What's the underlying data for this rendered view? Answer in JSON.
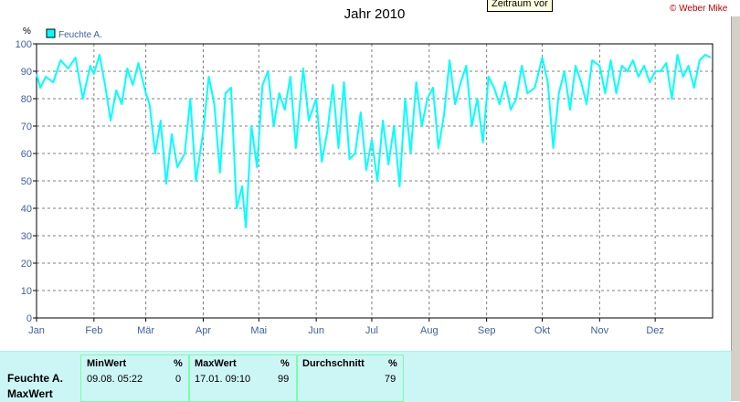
{
  "tooltip": "Zeitraum vor",
  "copyright": "© Weber Mike",
  "colors": {
    "series": "#00ffff",
    "axis": "#000000",
    "grid": "#808080",
    "panel": "#ccf6f5"
  },
  "chart_data": {
    "type": "line",
    "title": "Jahr 2010",
    "ylabel": "%",
    "ylim": [
      0,
      100
    ],
    "yticks": [
      0,
      10,
      20,
      30,
      40,
      50,
      60,
      70,
      80,
      90,
      100
    ],
    "xlim": [
      "2010-01-01",
      "2010-12-31"
    ],
    "xticks": [
      "Jan",
      "Feb",
      "Mär",
      "Apr",
      "Mai",
      "Jun",
      "Jul",
      "Aug",
      "Sep",
      "Okt",
      "Nov",
      "Dez"
    ],
    "grid": true,
    "legend": "top-left",
    "series": [
      {
        "name": "Feuchte A.",
        "color": "#00ffff",
        "x": [
          "2010-01-01",
          "2010-01-03",
          "2010-01-06",
          "2010-01-10",
          "2010-01-14",
          "2010-01-18",
          "2010-01-22",
          "2010-01-26",
          "2010-01-30",
          "2010-02-01",
          "2010-02-04",
          "2010-02-07",
          "2010-02-10",
          "2010-02-13",
          "2010-02-16",
          "2010-02-19",
          "2010-02-22",
          "2010-02-25",
          "2010-03-01",
          "2010-03-03",
          "2010-03-06",
          "2010-03-09",
          "2010-03-12",
          "2010-03-15",
          "2010-03-18",
          "2010-03-22",
          "2010-03-25",
          "2010-03-28",
          "2010-04-01",
          "2010-04-04",
          "2010-04-07",
          "2010-04-10",
          "2010-04-13",
          "2010-04-16",
          "2010-04-19",
          "2010-04-22",
          "2010-04-24",
          "2010-04-27",
          "2010-04-30",
          "2010-05-03",
          "2010-05-06",
          "2010-05-09",
          "2010-05-12",
          "2010-05-15",
          "2010-05-18",
          "2010-05-21",
          "2010-05-25",
          "2010-05-28",
          "2010-06-01",
          "2010-06-04",
          "2010-06-07",
          "2010-06-10",
          "2010-06-13",
          "2010-06-16",
          "2010-06-19",
          "2010-06-22",
          "2010-06-25",
          "2010-06-28",
          "2010-07-01",
          "2010-07-04",
          "2010-07-07",
          "2010-07-10",
          "2010-07-13",
          "2010-07-16",
          "2010-07-19",
          "2010-07-22",
          "2010-07-25",
          "2010-07-28",
          "2010-07-31",
          "2010-08-03",
          "2010-08-06",
          "2010-08-09",
          "2010-08-12",
          "2010-08-15",
          "2010-08-18",
          "2010-08-21",
          "2010-08-24",
          "2010-08-27",
          "2010-08-30",
          "2010-09-02",
          "2010-09-05",
          "2010-09-08",
          "2010-09-11",
          "2010-09-14",
          "2010-09-17",
          "2010-09-20",
          "2010-09-23",
          "2010-09-27",
          "2010-10-01",
          "2010-10-04",
          "2010-10-07",
          "2010-10-10",
          "2010-10-13",
          "2010-10-16",
          "2010-10-19",
          "2010-10-22",
          "2010-10-25",
          "2010-10-28",
          "2010-11-01",
          "2010-11-04",
          "2010-11-07",
          "2010-11-10",
          "2010-11-13",
          "2010-11-16",
          "2010-11-19",
          "2010-11-22",
          "2010-11-25",
          "2010-11-28",
          "2010-12-01",
          "2010-12-04",
          "2010-12-07",
          "2010-12-10",
          "2010-12-13",
          "2010-12-16",
          "2010-12-19",
          "2010-12-22",
          "2010-12-25",
          "2010-12-28",
          "2010-12-31"
        ],
        "values": [
          89,
          84,
          88,
          86,
          94,
          91,
          95,
          80,
          92,
          89,
          96,
          85,
          72,
          83,
          78,
          91,
          85,
          93,
          82,
          78,
          60,
          72,
          49,
          67,
          55,
          60,
          80,
          50,
          68,
          88,
          78,
          53,
          82,
          84,
          40,
          48,
          33,
          70,
          55,
          85,
          90,
          70,
          82,
          76,
          88,
          62,
          91,
          72,
          80,
          57,
          68,
          85,
          62,
          86,
          58,
          60,
          75,
          54,
          65,
          50,
          72,
          56,
          70,
          48,
          80,
          60,
          86,
          70,
          80,
          84,
          62,
          74,
          94,
          78,
          86,
          92,
          70,
          80,
          64,
          88,
          84,
          78,
          86,
          76,
          80,
          92,
          82,
          84,
          95,
          86,
          62,
          82,
          90,
          76,
          92,
          86,
          78,
          94,
          92,
          82,
          94,
          82,
          92,
          90,
          94,
          88,
          92,
          86,
          90,
          90,
          93,
          80,
          96,
          88,
          92,
          84,
          94,
          96,
          95
        ]
      }
    ]
  },
  "stats": {
    "row_labels": [
      "Feuchte A.",
      "MaxWert"
    ],
    "min": {
      "header": "MinWert",
      "unit": "%",
      "date": "09.08.  05:22",
      "value": "0"
    },
    "max": {
      "header": "MaxWert",
      "unit": "%",
      "date": "17.01.  09:10",
      "value": "99"
    },
    "avg": {
      "header": "Durchschnitt",
      "unit": "%",
      "value": "79"
    }
  }
}
